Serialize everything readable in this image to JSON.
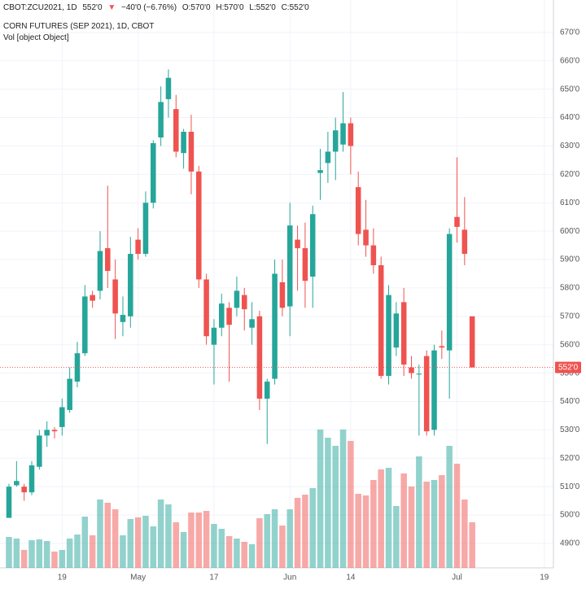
{
  "header": {
    "symbol": "CBOT:ZCU2021, 1D",
    "price": "552'0",
    "arrow": "▼",
    "change": "−40'0 (−6.76%)",
    "open": "O:570'0",
    "high": "H:570'0",
    "low": "L:552'0",
    "close": "C:552'0"
  },
  "chart_data": {
    "type": "candlestick",
    "title": "CORN FUTURES (SEP 2021), 1D, CBOT",
    "volume_label": "Vol [object Object]",
    "up_color": "#26a69a",
    "down_color": "#ef5350",
    "open": [
      499,
      510.5,
      510,
      508,
      517,
      528,
      530,
      531,
      537,
      547,
      557,
      577.5,
      579,
      594,
      583,
      568,
      570,
      597,
      592,
      610,
      633,
      646.5,
      643,
      627.5,
      635,
      621,
      583,
      560,
      566,
      573,
      573,
      577.5,
      566,
      570,
      541,
      548,
      582,
      573.5,
      597,
      594,
      584,
      620.5,
      624,
      628,
      630.5,
      638,
      615.5,
      600.5,
      595,
      588,
      549,
      559,
      575,
      552,
      549.5,
      556,
      530,
      559.5,
      558,
      605,
      600.5,
      570
    ],
    "high": [
      511,
      519,
      511,
      519,
      530,
      533,
      531,
      541,
      552,
      561,
      581,
      579,
      600,
      616,
      590,
      577,
      598,
      601,
      614,
      632,
      651,
      657,
      648,
      636,
      641,
      623,
      585,
      569,
      578,
      575,
      584,
      580,
      575,
      572,
      548,
      590,
      590,
      610,
      602,
      603,
      609,
      629,
      635,
      640,
      649,
      640,
      621,
      611,
      601,
      591,
      581,
      575,
      580,
      556,
      553,
      558,
      560,
      565,
      601,
      626,
      612,
      570
    ],
    "low": [
      499,
      510,
      505,
      507,
      516,
      524,
      527,
      528,
      536,
      545,
      556,
      573,
      576,
      580,
      562,
      563,
      566,
      590,
      591,
      608,
      630,
      640,
      626,
      622,
      613,
      580,
      560,
      546,
      563,
      547,
      570,
      565,
      560,
      537,
      525,
      546,
      570,
      563,
      579,
      573,
      573,
      611,
      617,
      618,
      628,
      620,
      595,
      591,
      585,
      548,
      546,
      556,
      549,
      548,
      528,
      528,
      528,
      555,
      541,
      596,
      588,
      552
    ],
    "close": [
      510,
      512,
      508,
      517.5,
      528,
      530,
      529.5,
      538,
      548,
      557,
      577,
      575.5,
      593,
      586,
      571,
      570.5,
      592,
      592,
      610,
      631,
      645.5,
      654,
      628,
      635,
      621,
      583,
      563,
      566,
      574.5,
      567,
      579,
      572.5,
      569,
      541,
      547,
      585,
      573,
      602,
      594,
      582.5,
      606,
      621.5,
      628,
      635.5,
      638,
      630,
      599,
      595,
      588,
      549,
      577.5,
      571,
      553,
      550,
      549.8,
      529.5,
      558,
      559,
      599,
      601.5,
      592,
      552
    ],
    "volume": [
      38,
      36,
      22,
      34,
      35,
      33,
      20,
      22,
      36,
      41,
      63,
      40,
      84,
      80,
      72,
      40,
      60,
      62,
      64,
      51,
      84,
      78,
      56,
      44,
      68,
      68,
      70,
      54,
      48,
      39,
      36,
      32,
      29,
      61,
      66,
      72,
      52,
      72,
      86,
      90,
      98,
      170,
      160,
      150,
      170,
      156,
      91,
      89,
      108,
      121,
      123,
      76,
      116,
      100,
      137,
      106,
      108,
      114,
      150,
      128,
      84,
      56
    ],
    "volume_lim": [
      0,
      670
    ],
    "xlim": [
      -1.18,
      71.7
    ],
    "xticks": [
      {
        "value": 7,
        "label": "19"
      },
      {
        "value": 17,
        "label": "May"
      },
      {
        "value": 27,
        "label": "17"
      },
      {
        "value": 37,
        "label": "Jun"
      },
      {
        "value": 45,
        "label": "14"
      },
      {
        "value": 59,
        "label": "Jul"
      },
      {
        "value": 70.5,
        "label": "19"
      }
    ],
    "ylim": [
      481.4,
      673.4
    ],
    "yticks": [
      {
        "value": 490,
        "label": "490'0"
      },
      {
        "value": 500,
        "label": "500'0"
      },
      {
        "value": 510,
        "label": "510'0"
      },
      {
        "value": 520,
        "label": "520'0"
      },
      {
        "value": 530,
        "label": "530'0"
      },
      {
        "value": 540,
        "label": "540'0"
      },
      {
        "value": 550,
        "label": "550'0"
      },
      {
        "value": 560,
        "label": "560'0"
      },
      {
        "value": 570,
        "label": "570'0"
      },
      {
        "value": 580,
        "label": "580'0"
      },
      {
        "value": 590,
        "label": "590'0"
      },
      {
        "value": 600,
        "label": "600'0"
      },
      {
        "value": 610,
        "label": "610'0"
      },
      {
        "value": 620,
        "label": "620'0"
      },
      {
        "value": 630,
        "label": "630'0"
      },
      {
        "value": 640,
        "label": "640'0"
      },
      {
        "value": 650,
        "label": "650'0"
      },
      {
        "value": 660,
        "label": "660'0"
      },
      {
        "value": 670,
        "label": "670'0"
      }
    ],
    "last_price": {
      "value": 552,
      "label": "552'0"
    },
    "grid": true
  }
}
